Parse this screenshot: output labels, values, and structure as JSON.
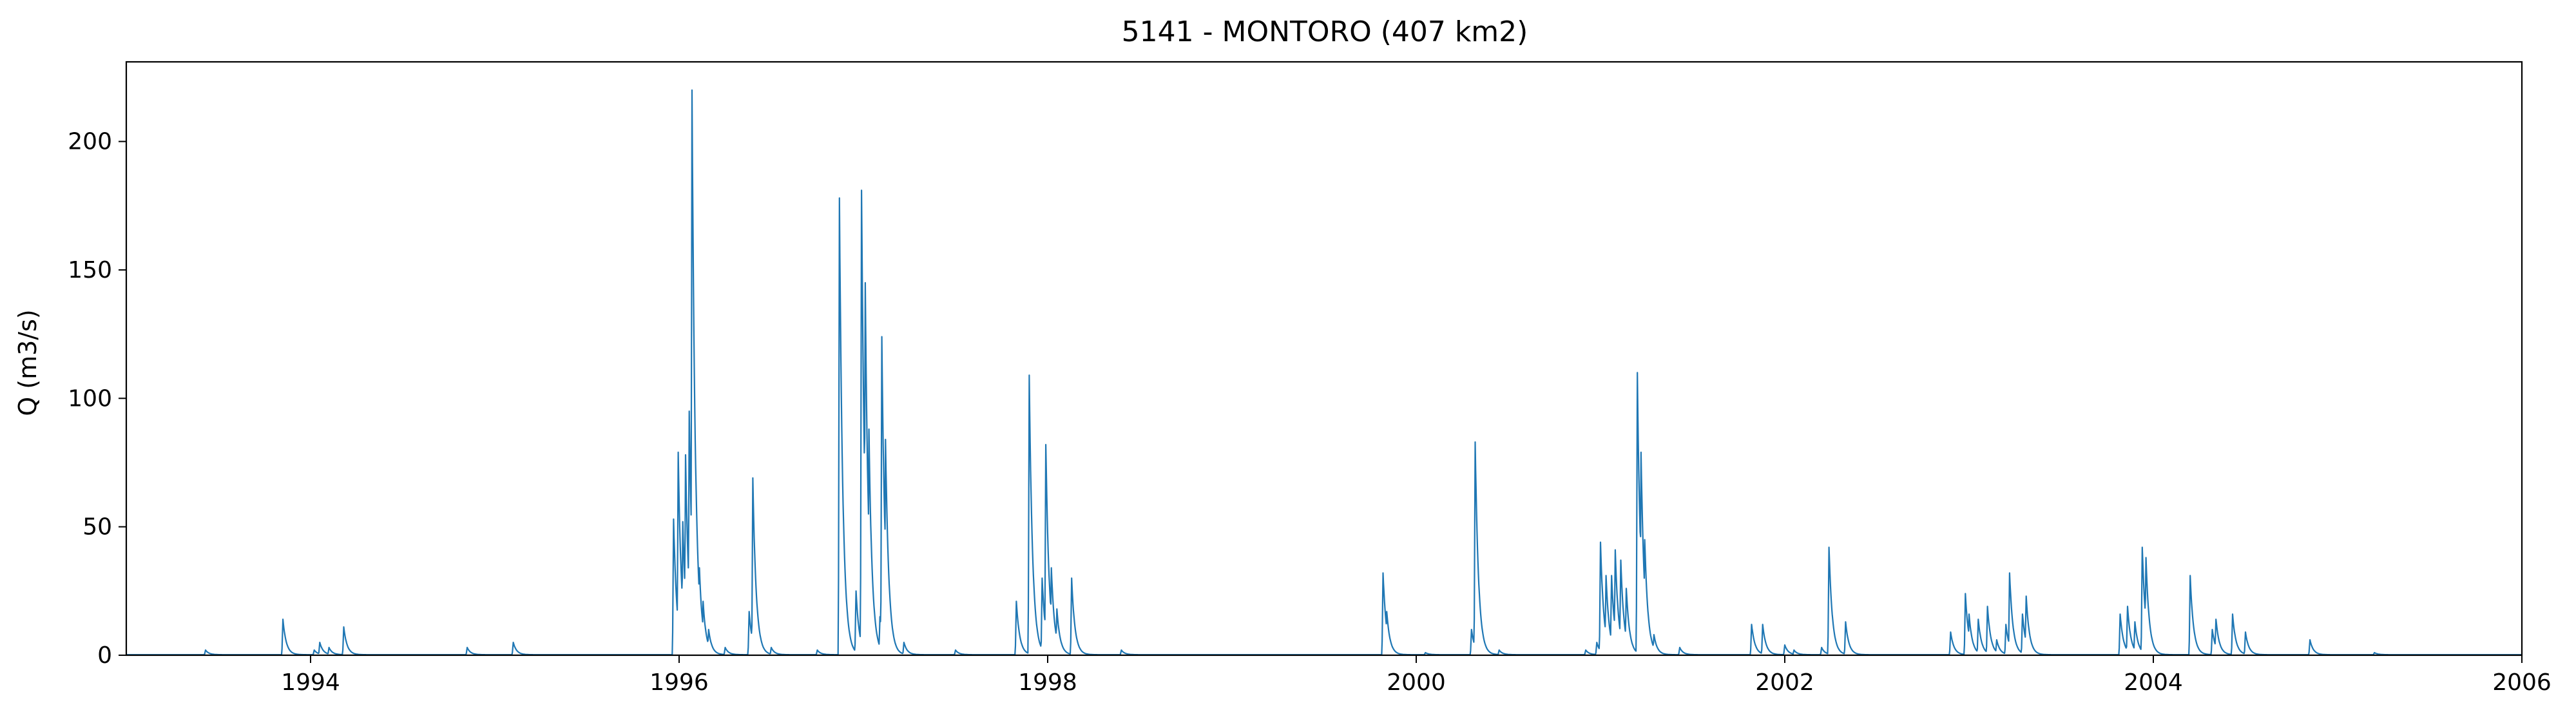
{
  "chart_data": {
    "type": "line",
    "title": "5141 - MONTORO (407 km2)",
    "xlabel": "",
    "ylabel": "Q (m3/s)",
    "xlim": [
      1993.0,
      2006.0
    ],
    "ylim": [
      0,
      231
    ],
    "xticks": [
      1994,
      1996,
      1998,
      2000,
      2002,
      2004,
      2006
    ],
    "yticks": [
      0,
      50,
      100,
      150,
      200
    ],
    "grid": false,
    "legend": "none",
    "series_color": "#1f77b4",
    "baseflow": 0.2,
    "peaks": [
      {
        "x": 1993.43,
        "y": 2
      },
      {
        "x": 1993.85,
        "y": 14
      },
      {
        "x": 1994.02,
        "y": 2
      },
      {
        "x": 1994.05,
        "y": 5
      },
      {
        "x": 1994.1,
        "y": 3
      },
      {
        "x": 1994.18,
        "y": 11
      },
      {
        "x": 1994.85,
        "y": 3
      },
      {
        "x": 1995.1,
        "y": 5
      },
      {
        "x": 1995.97,
        "y": 53
      },
      {
        "x": 1995.995,
        "y": 79
      },
      {
        "x": 1996.02,
        "y": 52
      },
      {
        "x": 1996.035,
        "y": 78
      },
      {
        "x": 1996.055,
        "y": 95
      },
      {
        "x": 1996.07,
        "y": 220
      },
      {
        "x": 1996.09,
        "y": 73
      },
      {
        "x": 1996.11,
        "y": 34
      },
      {
        "x": 1996.13,
        "y": 21
      },
      {
        "x": 1996.16,
        "y": 10
      },
      {
        "x": 1996.25,
        "y": 3
      },
      {
        "x": 1996.38,
        "y": 17
      },
      {
        "x": 1996.4,
        "y": 69
      },
      {
        "x": 1996.5,
        "y": 3
      },
      {
        "x": 1996.75,
        "y": 2
      },
      {
        "x": 1996.87,
        "y": 178
      },
      {
        "x": 1996.96,
        "y": 25
      },
      {
        "x": 1996.99,
        "y": 181
      },
      {
        "x": 1997.01,
        "y": 145
      },
      {
        "x": 1997.03,
        "y": 88
      },
      {
        "x": 1997.09,
        "y": 15
      },
      {
        "x": 1997.1,
        "y": 124
      },
      {
        "x": 1997.12,
        "y": 84
      },
      {
        "x": 1997.22,
        "y": 5
      },
      {
        "x": 1997.5,
        "y": 2
      },
      {
        "x": 1997.83,
        "y": 21
      },
      {
        "x": 1997.9,
        "y": 109
      },
      {
        "x": 1997.97,
        "y": 30
      },
      {
        "x": 1997.99,
        "y": 82
      },
      {
        "x": 1998.02,
        "y": 34
      },
      {
        "x": 1998.05,
        "y": 18
      },
      {
        "x": 1998.13,
        "y": 30
      },
      {
        "x": 1998.4,
        "y": 2
      },
      {
        "x": 1999.82,
        "y": 32
      },
      {
        "x": 1999.84,
        "y": 17
      },
      {
        "x": 2000.05,
        "y": 1
      },
      {
        "x": 2000.3,
        "y": 10
      },
      {
        "x": 2000.32,
        "y": 83
      },
      {
        "x": 2000.45,
        "y": 2
      },
      {
        "x": 2000.92,
        "y": 2
      },
      {
        "x": 2000.98,
        "y": 5
      },
      {
        "x": 2001.0,
        "y": 44
      },
      {
        "x": 2001.03,
        "y": 31
      },
      {
        "x": 2001.06,
        "y": 31
      },
      {
        "x": 2001.08,
        "y": 41
      },
      {
        "x": 2001.11,
        "y": 37
      },
      {
        "x": 2001.14,
        "y": 26
      },
      {
        "x": 2001.2,
        "y": 110
      },
      {
        "x": 2001.22,
        "y": 79
      },
      {
        "x": 2001.24,
        "y": 45
      },
      {
        "x": 2001.29,
        "y": 8
      },
      {
        "x": 2001.43,
        "y": 3
      },
      {
        "x": 2001.82,
        "y": 12
      },
      {
        "x": 2001.88,
        "y": 12
      },
      {
        "x": 2002.0,
        "y": 4
      },
      {
        "x": 2002.05,
        "y": 2
      },
      {
        "x": 2002.2,
        "y": 3
      },
      {
        "x": 2002.24,
        "y": 42
      },
      {
        "x": 2002.33,
        "y": 13
      },
      {
        "x": 2002.9,
        "y": 9
      },
      {
        "x": 2002.98,
        "y": 24
      },
      {
        "x": 2003.0,
        "y": 16
      },
      {
        "x": 2003.05,
        "y": 14
      },
      {
        "x": 2003.1,
        "y": 19
      },
      {
        "x": 2003.15,
        "y": 6
      },
      {
        "x": 2003.2,
        "y": 12
      },
      {
        "x": 2003.22,
        "y": 32
      },
      {
        "x": 2003.29,
        "y": 16
      },
      {
        "x": 2003.31,
        "y": 23
      },
      {
        "x": 2003.82,
        "y": 16
      },
      {
        "x": 2003.86,
        "y": 19
      },
      {
        "x": 2003.9,
        "y": 13
      },
      {
        "x": 2003.94,
        "y": 42
      },
      {
        "x": 2003.96,
        "y": 38
      },
      {
        "x": 2004.2,
        "y": 31
      },
      {
        "x": 2004.32,
        "y": 10
      },
      {
        "x": 2004.34,
        "y": 14
      },
      {
        "x": 2004.43,
        "y": 16
      },
      {
        "x": 2004.5,
        "y": 9
      },
      {
        "x": 2004.85,
        "y": 6
      },
      {
        "x": 2005.2,
        "y": 1
      }
    ]
  }
}
